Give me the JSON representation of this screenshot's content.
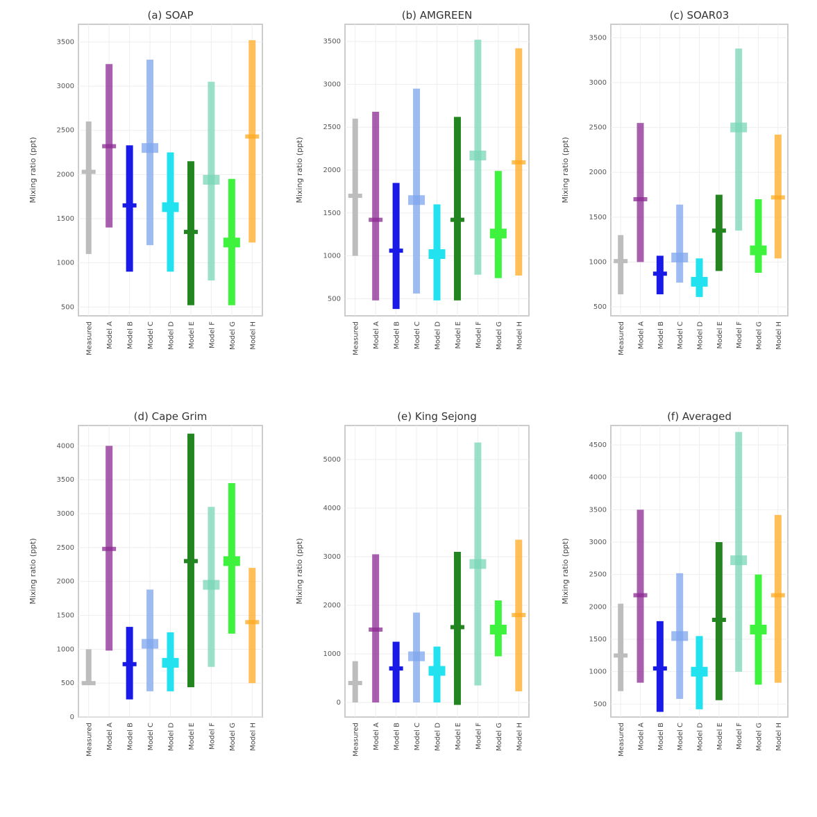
{
  "chart_data": [
    {
      "type": "interval",
      "title": "(a) SOAP",
      "ylabel": "Mixing ratio (ppt)",
      "ylim": [
        400,
        3700
      ],
      "yticks": [
        500,
        1000,
        1500,
        2000,
        2500,
        3000,
        3500
      ],
      "categories": [
        "Measured",
        "Model A",
        "Model B",
        "Model C",
        "Model D",
        "Model E",
        "Model F",
        "Model G",
        "Model H"
      ],
      "series": [
        {
          "low": 1100,
          "high": 2600,
          "mid": 2030
        },
        {
          "low": 1400,
          "high": 3250,
          "mid": 2320
        },
        {
          "low": 900,
          "high": 2330,
          "mid": 1650
        },
        {
          "low": 1200,
          "high": 3300,
          "mid": 2300
        },
        {
          "low": 900,
          "high": 2250,
          "mid": 1630
        },
        {
          "low": 520,
          "high": 2150,
          "mid": 1350
        },
        {
          "low": 800,
          "high": 3050,
          "mid": 1940
        },
        {
          "low": 520,
          "high": 1950,
          "mid": 1230
        },
        {
          "low": 1230,
          "high": 3520,
          "mid": 2430
        }
      ]
    },
    {
      "type": "interval",
      "title": "(b) AMGREEN",
      "ylabel": "Mixing ratio (ppt)",
      "ylim": [
        300,
        3700
      ],
      "yticks": [
        500,
        1000,
        1500,
        2000,
        2500,
        3000,
        3500
      ],
      "categories": [
        "Measured",
        "Model A",
        "Model B",
        "Model C",
        "Model D",
        "Model E",
        "Model F",
        "Model G",
        "Model H"
      ],
      "series": [
        {
          "low": 1000,
          "high": 2600,
          "mid": 1700
        },
        {
          "low": 480,
          "high": 2680,
          "mid": 1420
        },
        {
          "low": 380,
          "high": 1850,
          "mid": 1060
        },
        {
          "low": 560,
          "high": 2950,
          "mid": 1650
        },
        {
          "low": 480,
          "high": 1600,
          "mid": 1020
        },
        {
          "low": 480,
          "high": 2620,
          "mid": 1420
        },
        {
          "low": 780,
          "high": 3520,
          "mid": 2170
        },
        {
          "low": 740,
          "high": 1990,
          "mid": 1260
        },
        {
          "low": 770,
          "high": 3420,
          "mid": 2090
        }
      ]
    },
    {
      "type": "interval",
      "title": "(c) SOAR03",
      "ylabel": "Mixing ratio (ppt)",
      "ylim": [
        400,
        3650
      ],
      "yticks": [
        500,
        1000,
        1500,
        2000,
        2500,
        3000,
        3500
      ],
      "categories": [
        "Measured",
        "Model A",
        "Model B",
        "Model C",
        "Model D",
        "Model E",
        "Model F",
        "Model G",
        "Model H"
      ],
      "series": [
        {
          "low": 640,
          "high": 1300,
          "mid": 1010
        },
        {
          "low": 1000,
          "high": 2550,
          "mid": 1700
        },
        {
          "low": 640,
          "high": 1070,
          "mid": 870
        },
        {
          "low": 770,
          "high": 1640,
          "mid": 1050
        },
        {
          "low": 610,
          "high": 1040,
          "mid": 780
        },
        {
          "low": 900,
          "high": 1750,
          "mid": 1350
        },
        {
          "low": 1350,
          "high": 3380,
          "mid": 2500
        },
        {
          "low": 880,
          "high": 1700,
          "mid": 1130
        },
        {
          "low": 1040,
          "high": 2420,
          "mid": 1720
        }
      ]
    },
    {
      "type": "interval",
      "title": "(d) Cape Grim",
      "ylabel": "Mixing ratio (ppt)",
      "ylim": [
        0,
        4300
      ],
      "yticks": [
        0,
        500,
        1000,
        1500,
        2000,
        2500,
        3000,
        3500,
        4000
      ],
      "categories": [
        "Measured",
        "Model A",
        "Model B",
        "Model C",
        "Model D",
        "Model E",
        "Model F",
        "Model G",
        "Model H"
      ],
      "series": [
        {
          "low": 500,
          "high": 1000,
          "mid": 500
        },
        {
          "low": 980,
          "high": 4000,
          "mid": 2480
        },
        {
          "low": 260,
          "high": 1330,
          "mid": 780
        },
        {
          "low": 380,
          "high": 1880,
          "mid": 1080
        },
        {
          "low": 380,
          "high": 1250,
          "mid": 800
        },
        {
          "low": 440,
          "high": 4180,
          "mid": 2300
        },
        {
          "low": 740,
          "high": 3100,
          "mid": 1950
        },
        {
          "low": 1230,
          "high": 3450,
          "mid": 2300
        },
        {
          "low": 500,
          "high": 2200,
          "mid": 1400
        }
      ]
    },
    {
      "type": "interval",
      "title": "(e) King Sejong",
      "ylabel": "Mixing ratio (ppt)",
      "ylim": [
        -300,
        5700
      ],
      "yticks": [
        0,
        1000,
        2000,
        3000,
        4000,
        5000
      ],
      "categories": [
        "Measured",
        "Model A",
        "Model B",
        "Model C",
        "Model D",
        "Model E",
        "Model F",
        "Model G",
        "Model H"
      ],
      "series": [
        {
          "low": 0,
          "high": 850,
          "mid": 400
        },
        {
          "low": 0,
          "high": 3050,
          "mid": 1500
        },
        {
          "low": 0,
          "high": 1250,
          "mid": 700
        },
        {
          "low": 0,
          "high": 1850,
          "mid": 950
        },
        {
          "low": 0,
          "high": 1150,
          "mid": 650
        },
        {
          "low": -50,
          "high": 3100,
          "mid": 1550
        },
        {
          "low": 350,
          "high": 5350,
          "mid": 2850
        },
        {
          "low": 950,
          "high": 2100,
          "mid": 1500
        },
        {
          "low": 230,
          "high": 3350,
          "mid": 1800
        }
      ]
    },
    {
      "type": "interval",
      "title": "(f) Averaged",
      "ylabel": "Mixing ratio (ppt)",
      "ylim": [
        300,
        4800
      ],
      "yticks": [
        500,
        1000,
        1500,
        2000,
        2500,
        3000,
        3500,
        4000,
        4500
      ],
      "categories": [
        "Measured",
        "Model A",
        "Model B",
        "Model C",
        "Model D",
        "Model E",
        "Model F",
        "Model G",
        "Model H"
      ],
      "series": [
        {
          "low": 700,
          "high": 2050,
          "mid": 1250
        },
        {
          "low": 830,
          "high": 3500,
          "mid": 2180
        },
        {
          "low": 380,
          "high": 1780,
          "mid": 1050
        },
        {
          "low": 580,
          "high": 2520,
          "mid": 1550
        },
        {
          "low": 420,
          "high": 1550,
          "mid": 1000
        },
        {
          "low": 560,
          "high": 3000,
          "mid": 1800
        },
        {
          "low": 1000,
          "high": 4700,
          "mid": 2720
        },
        {
          "low": 800,
          "high": 2500,
          "mid": 1650
        },
        {
          "low": 830,
          "high": 3420,
          "mid": 2180
        }
      ]
    }
  ],
  "style": {
    "colors": [
      "#bdbdbd",
      "#8b2a92",
      "#1a1ae6",
      "#7fa6ee",
      "#22e2f0",
      "#23851f",
      "#79d6b6",
      "#3ef23e",
      "#ffaa22"
    ],
    "mid_styles": [
      "thin",
      "thin",
      "thin",
      "box",
      "box",
      "thin",
      "box",
      "box",
      "thin"
    ],
    "outline": "#cccccc",
    "grid": "#eeeeee"
  }
}
